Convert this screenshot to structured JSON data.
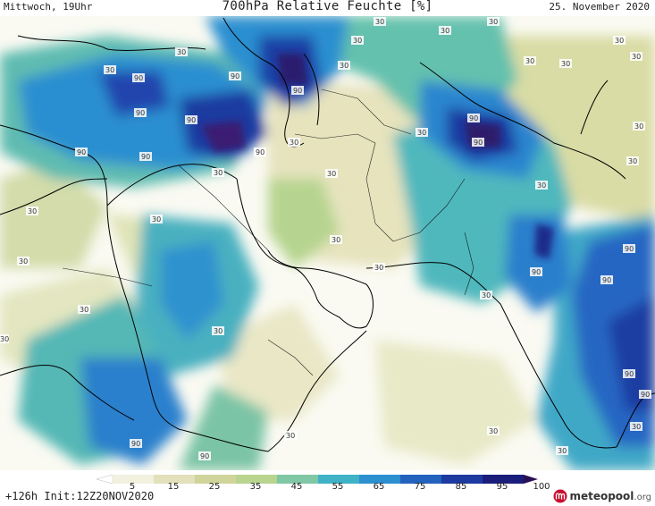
{
  "header": {
    "left": "Mittwoch, 19Uhr",
    "title": "700hPa Relative Feuchte [%]",
    "date": "25. November 2020"
  },
  "legend": {
    "ticks": [
      "5",
      "15",
      "25",
      "35",
      "45",
      "55",
      "65",
      "75",
      "85",
      "95",
      "100"
    ],
    "colors": [
      "#ffffff",
      "#f2f1e0",
      "#e3e1bc",
      "#d0d49a",
      "#b8d48f",
      "#7fc7a5",
      "#3fb2c6",
      "#2c8fd0",
      "#2362bf",
      "#1d3aa0",
      "#1a1e7a",
      "#2a0f56"
    ]
  },
  "footer": {
    "run": "+126h Init:12Z20NOV2020",
    "logo_main": "meteopool",
    "logo_domain": ".org"
  },
  "map": {
    "contour_labels": [
      "90",
      "90",
      "90",
      "90",
      "90",
      "90",
      "90",
      "90",
      "90",
      "90",
      "90",
      "90",
      "90",
      "90",
      "90",
      "90",
      "90",
      "30",
      "30",
      "30",
      "30",
      "30",
      "30",
      "30",
      "30",
      "30",
      "30",
      "30",
      "30",
      "30",
      "30",
      "30",
      "30",
      "30",
      "30",
      "30",
      "30",
      "30",
      "30",
      "30",
      "30",
      "30",
      "30",
      "30",
      "30",
      "30",
      "30",
      "30"
    ]
  }
}
